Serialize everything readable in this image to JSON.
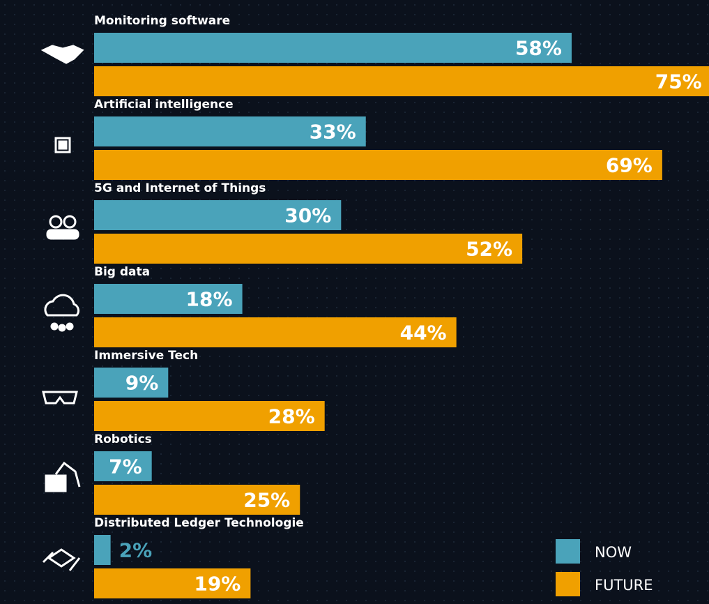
{
  "chart_data": {
    "type": "hbar",
    "categories": [
      "Monitoring software",
      "Artificial intelligence",
      "5G and Internet of Things",
      "Big data",
      "Immersive Tech",
      "Robotics",
      "Distributed Ledger Technologie"
    ],
    "series": [
      {
        "name": "NOW",
        "color": "#4aa3ba",
        "values": [
          58,
          33,
          30,
          18,
          9,
          7,
          2
        ],
        "value_labels": [
          "58%",
          "33%",
          "30%",
          "18%",
          "9%",
          "7%",
          "2%"
        ]
      },
      {
        "name": "FUTURE",
        "color": "#f0a000",
        "values": [
          75,
          69,
          52,
          44,
          28,
          25,
          19
        ],
        "value_labels": [
          "75%",
          "69%",
          "52%",
          "44%",
          "28%",
          "25%",
          "19%"
        ]
      }
    ]
  }
}
